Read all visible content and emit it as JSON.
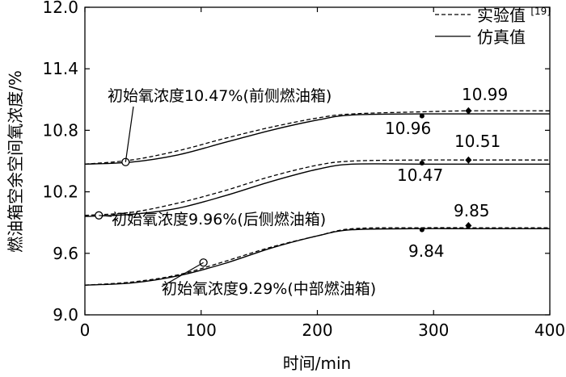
{
  "chart_data": {
    "type": "line",
    "xlabel": "时间/min",
    "ylabel": "燃油箱空余空间氧浓度/%",
    "xlim": [
      0,
      400
    ],
    "ylim": [
      9.0,
      12.0
    ],
    "xticks": [
      0,
      100,
      200,
      300,
      400
    ],
    "yticks": [
      9.0,
      9.6,
      10.2,
      10.8,
      11.4,
      12.0
    ],
    "xtick_labels": [
      "0",
      "100",
      "200",
      "300",
      "400"
    ],
    "ytick_labels": [
      "9.0",
      "9.6",
      "10.2",
      "10.8",
      "11.4",
      "12.0"
    ],
    "grid": false,
    "legend_position": "top-right",
    "legend": [
      {
        "label": "实验值",
        "sup": "[19]",
        "style": "dashed"
      },
      {
        "label": "仿真值",
        "style": "solid"
      }
    ],
    "series": [
      {
        "name": "初始氧浓度10.47%(前侧燃油箱)",
        "experimental": [
          [
            0,
            10.47
          ],
          [
            40,
            10.51
          ],
          [
            80,
            10.6
          ],
          [
            120,
            10.72
          ],
          [
            160,
            10.83
          ],
          [
            200,
            10.92
          ],
          [
            230,
            10.96
          ],
          [
            290,
            10.98
          ],
          [
            330,
            10.99
          ],
          [
            400,
            10.99
          ]
        ],
        "simulation": [
          [
            0,
            10.47
          ],
          [
            40,
            10.49
          ],
          [
            80,
            10.56
          ],
          [
            120,
            10.68
          ],
          [
            160,
            10.8
          ],
          [
            200,
            10.9
          ],
          [
            230,
            10.95
          ],
          [
            290,
            10.96
          ],
          [
            330,
            10.96
          ],
          [
            400,
            10.96
          ]
        ],
        "initial_marker": [
          35,
          10.49
        ],
        "exp_marker": [
          330,
          10.99
        ],
        "sim_marker": [
          290,
          10.94
        ]
      },
      {
        "name": "初始氧浓度9.96%(后侧燃油箱)",
        "experimental": [
          [
            0,
            9.97
          ],
          [
            40,
            10.0
          ],
          [
            80,
            10.09
          ],
          [
            120,
            10.21
          ],
          [
            160,
            10.35
          ],
          [
            200,
            10.46
          ],
          [
            230,
            10.5
          ],
          [
            290,
            10.51
          ],
          [
            330,
            10.51
          ],
          [
            400,
            10.51
          ]
        ],
        "simulation": [
          [
            0,
            9.96
          ],
          [
            40,
            9.98
          ],
          [
            80,
            10.04
          ],
          [
            120,
            10.16
          ],
          [
            160,
            10.3
          ],
          [
            200,
            10.42
          ],
          [
            230,
            10.47
          ],
          [
            290,
            10.47
          ],
          [
            330,
            10.47
          ],
          [
            400,
            10.47
          ]
        ],
        "initial_marker": [
          12,
          9.97
        ],
        "exp_marker": [
          330,
          10.51
        ],
        "sim_marker": [
          290,
          10.48
        ]
      },
      {
        "name": "初始氧浓度9.29%(中部燃油箱)",
        "experimental": [
          [
            0,
            9.29
          ],
          [
            40,
            9.32
          ],
          [
            80,
            9.39
          ],
          [
            120,
            9.52
          ],
          [
            160,
            9.66
          ],
          [
            200,
            9.77
          ],
          [
            230,
            9.84
          ],
          [
            290,
            9.85
          ],
          [
            330,
            9.85
          ],
          [
            400,
            9.85
          ]
        ],
        "simulation": [
          [
            0,
            9.29
          ],
          [
            40,
            9.31
          ],
          [
            80,
            9.38
          ],
          [
            120,
            9.5
          ],
          [
            160,
            9.65
          ],
          [
            200,
            9.77
          ],
          [
            230,
            9.83
          ],
          [
            290,
            9.84
          ],
          [
            330,
            9.84
          ],
          [
            400,
            9.84
          ]
        ],
        "initial_marker": [
          102,
          9.51
        ],
        "exp_marker": [
          330,
          9.87
        ],
        "sim_marker": [
          290,
          9.83
        ]
      }
    ],
    "data_labels": [
      {
        "text": "10.99"
      },
      {
        "text": "10.96"
      },
      {
        "text": "10.51"
      },
      {
        "text": "10.47"
      },
      {
        "text": "9.85"
      },
      {
        "text": "9.84"
      }
    ]
  }
}
